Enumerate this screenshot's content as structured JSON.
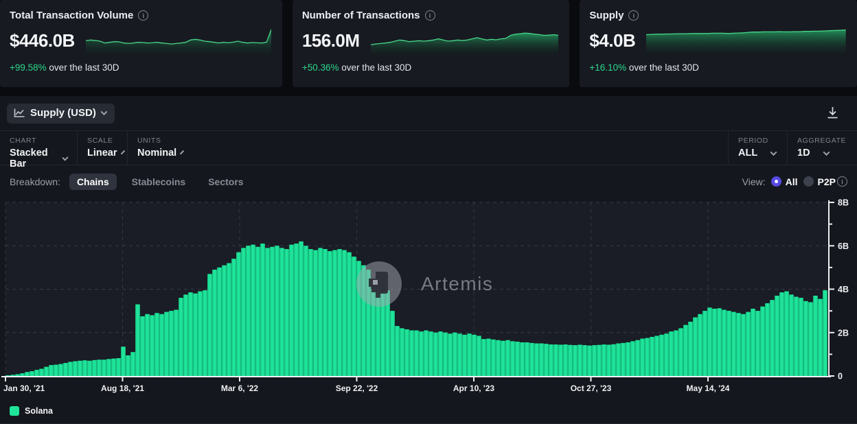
{
  "colors": {
    "bar_bright": "#1fe49a",
    "bar_dark": "#16bd80",
    "positive_green": "#2bd88c",
    "radio_selected": "#5649e2",
    "spark_stroke": "#49d68a"
  },
  "stats": [
    {
      "title": "Total Transaction Volume",
      "value": "$446.0B",
      "delta": "+99.58%",
      "delta_suffix": " over the last 30D",
      "spark": [
        0.52,
        0.55,
        0.53,
        0.5,
        0.42,
        0.45,
        0.48,
        0.47,
        0.42,
        0.4,
        0.42,
        0.45,
        0.44,
        0.42,
        0.43,
        0.45,
        0.42,
        0.4,
        0.38,
        0.4,
        0.42,
        0.45,
        0.55,
        0.58,
        0.55,
        0.5,
        0.48,
        0.45,
        0.42,
        0.45,
        0.43,
        0.46,
        0.5,
        0.45,
        0.42,
        0.44,
        0.43,
        0.42,
        0.45,
        1.0
      ]
    },
    {
      "title": "Number of Transactions",
      "value": "156.0M",
      "delta": "+50.36%",
      "delta_suffix": " over the last 30D",
      "spark": [
        0.35,
        0.38,
        0.4,
        0.42,
        0.45,
        0.5,
        0.55,
        0.52,
        0.48,
        0.5,
        0.52,
        0.5,
        0.52,
        0.55,
        0.6,
        0.55,
        0.5,
        0.52,
        0.55,
        0.53,
        0.55,
        0.6,
        0.65,
        0.6,
        0.55,
        0.58,
        0.56,
        0.6,
        0.62,
        0.75,
        0.8,
        0.82,
        0.85,
        0.83,
        0.8,
        0.78,
        0.75,
        0.76,
        0.78,
        0.75
      ]
    },
    {
      "title": "Supply",
      "value": "$4.0B",
      "delta": "+16.10%",
      "delta_suffix": " over the last 30D",
      "spark": [
        0.78,
        0.79,
        0.8,
        0.8,
        0.81,
        0.81,
        0.82,
        0.82,
        0.82,
        0.83,
        0.83,
        0.83,
        0.83,
        0.84,
        0.84,
        0.84,
        0.83,
        0.84,
        0.85,
        0.86,
        0.88,
        0.89,
        0.89,
        0.9,
        0.9,
        0.9,
        0.91,
        0.9,
        0.9,
        0.91,
        0.91,
        0.92,
        0.92,
        0.93,
        0.93,
        0.94,
        0.95,
        0.96,
        0.97,
        0.98
      ]
    }
  ],
  "toolbar": {
    "metric_label": "Supply (USD)",
    "download_icon": "download"
  },
  "controls": [
    {
      "label": "CHART",
      "value": "Stacked Bar"
    },
    {
      "label": "SCALE",
      "value": "Linear"
    },
    {
      "label": "UNITS",
      "value": "Nominal"
    }
  ],
  "controls_right": [
    {
      "label": "PERIOD",
      "value": "ALL"
    },
    {
      "label": "AGGREGATE",
      "value": "1D"
    }
  ],
  "breakdown": {
    "label": "Breakdown:",
    "options": [
      "Chains",
      "Stablecoins",
      "Sectors"
    ],
    "selected": "Chains"
  },
  "view": {
    "label": "View:",
    "options": [
      {
        "label": "All",
        "selected": true
      },
      {
        "label": "P2P",
        "selected": false
      }
    ]
  },
  "watermark": "Artemis",
  "legend": [
    {
      "label": "Solana",
      "color": "#1fe49a"
    }
  ],
  "chart_data": {
    "type": "bar",
    "title": "Supply (USD)",
    "ylim": [
      0,
      8
    ],
    "y_ticks": [
      "0",
      "2B",
      "4B",
      "6B",
      "8B"
    ],
    "y_tick_values": [
      0,
      2,
      4,
      6,
      8
    ],
    "y_minor_tick_values": [
      1,
      3,
      5,
      7
    ],
    "y_axis_side": "right",
    "grid": "dashed",
    "legend_position": "bottom-left",
    "x_ticks": [
      "Jan 30, '21",
      "Aug 18, '21",
      "Mar 6, '22",
      "Sep 22, '22",
      "Apr 10, '23",
      "Oct 27, '23",
      "May 14, '24"
    ],
    "unit": "B (USD)",
    "series": [
      {
        "name": "Solana",
        "color": "#1fe49a",
        "values": [
          0.03,
          0.05,
          0.08,
          0.12,
          0.18,
          0.22,
          0.28,
          0.33,
          0.42,
          0.5,
          0.52,
          0.55,
          0.6,
          0.65,
          0.68,
          0.7,
          0.72,
          0.7,
          0.73,
          0.75,
          0.75,
          0.78,
          0.8,
          0.82,
          1.35,
          0.95,
          1.1,
          3.3,
          2.75,
          2.85,
          2.8,
          2.9,
          2.85,
          2.95,
          3.0,
          3.05,
          3.6,
          3.75,
          3.85,
          3.8,
          3.9,
          3.95,
          4.7,
          4.9,
          5.0,
          5.1,
          5.2,
          5.4,
          5.7,
          5.9,
          6.0,
          6.05,
          5.95,
          6.1,
          5.9,
          5.95,
          6.0,
          5.9,
          5.85,
          6.05,
          6.1,
          6.2,
          6.0,
          5.85,
          5.8,
          5.9,
          5.85,
          5.75,
          5.8,
          5.85,
          5.8,
          5.7,
          5.5,
          5.3,
          5.1,
          4.9,
          4.0,
          3.9,
          3.85,
          3.95,
          3.0,
          2.3,
          2.2,
          2.15,
          2.1,
          2.1,
          2.05,
          2.1,
          2.05,
          2.0,
          2.05,
          2.0,
          1.95,
          2.0,
          1.95,
          1.9,
          1.95,
          1.9,
          1.85,
          1.7,
          1.72,
          1.68,
          1.65,
          1.62,
          1.65,
          1.6,
          1.58,
          1.55,
          1.55,
          1.52,
          1.5,
          1.5,
          1.48,
          1.45,
          1.45,
          1.44,
          1.45,
          1.43,
          1.42,
          1.44,
          1.42,
          1.4,
          1.42,
          1.43,
          1.45,
          1.44,
          1.46,
          1.5,
          1.52,
          1.55,
          1.6,
          1.65,
          1.72,
          1.75,
          1.8,
          1.85,
          1.9,
          1.95,
          2.05,
          2.1,
          2.2,
          2.35,
          2.5,
          2.7,
          2.85,
          3.0,
          3.15,
          3.1,
          3.12,
          3.05,
          3.0,
          2.95,
          2.9,
          2.85,
          2.95,
          3.1,
          3.0,
          3.2,
          3.35,
          3.5,
          3.7,
          3.85,
          3.9,
          3.75,
          3.65,
          3.6,
          3.45,
          3.4,
          3.7,
          3.55,
          3.95
        ]
      }
    ]
  }
}
